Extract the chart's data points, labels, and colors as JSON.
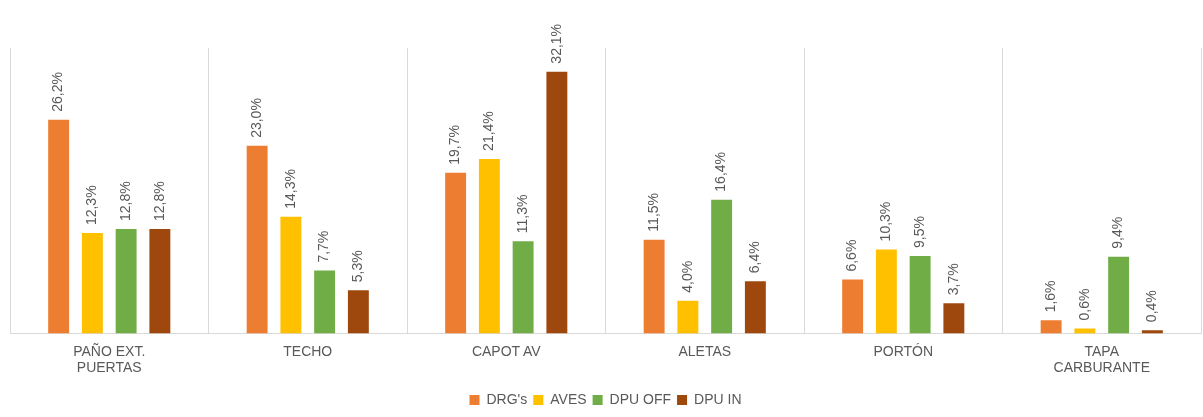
{
  "chart_data": {
    "type": "bar",
    "categories": [
      "PAÑO EXT. PUERTAS",
      "TECHO",
      "CAPOT AV",
      "ALETAS",
      "PORTÓN",
      "TAPA CARBURANTE"
    ],
    "series": [
      {
        "name": "DRG's",
        "color": "#ed7d31",
        "values": [
          26.2,
          23.0,
          19.7,
          11.5,
          6.6,
          1.6
        ],
        "value_labels": [
          "26,2%",
          "23,0%",
          "19,7%",
          "11,5%",
          "6,6%",
          "1,6%"
        ]
      },
      {
        "name": "AVES",
        "color": "#ffc000",
        "values": [
          12.3,
          14.3,
          21.4,
          4.0,
          10.3,
          0.6
        ],
        "value_labels": [
          "12,3%",
          "14,3%",
          "21,4%",
          "4,0%",
          "10,3%",
          "0,6%"
        ]
      },
      {
        "name": "DPU OFF",
        "color": "#70ad47",
        "values": [
          12.8,
          7.7,
          11.3,
          16.4,
          9.5,
          9.4
        ],
        "value_labels": [
          "12,8%",
          "7,7%",
          "11,3%",
          "16,4%",
          "9,5%",
          "9,4%"
        ]
      },
      {
        "name": "DPU IN",
        "color": "#9e480e",
        "values": [
          12.8,
          5.3,
          32.1,
          6.4,
          3.7,
          0.4
        ],
        "value_labels": [
          "12,8%",
          "5,3%",
          "32,1%",
          "6,4%",
          "3,7%",
          "0,4%"
        ]
      }
    ],
    "grid": "x",
    "legend": "bottom"
  }
}
